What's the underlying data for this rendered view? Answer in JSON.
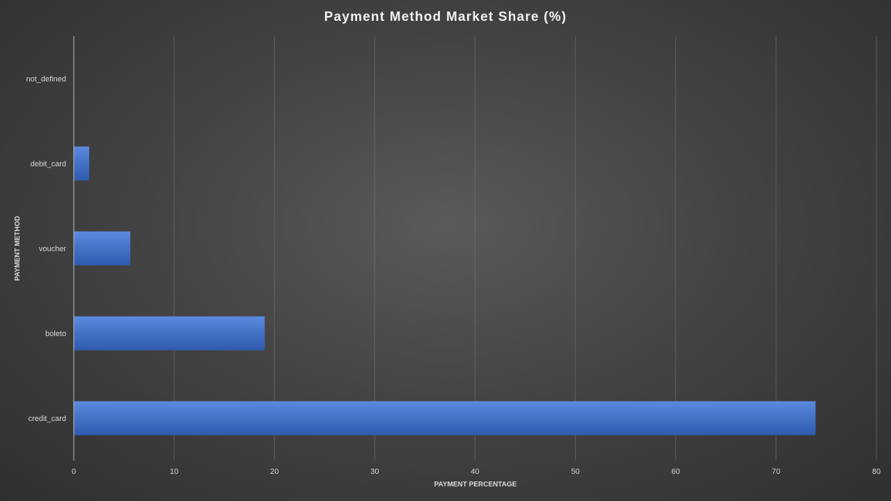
{
  "chart_data": {
    "type": "bar",
    "orientation": "horizontal",
    "title": "Payment Method Market Share (%)",
    "xlabel": "PAYMENT PERCENTAGE",
    "ylabel": "PAYMENT METHOD",
    "categories": [
      "not_defined",
      "debit_card",
      "voucher",
      "boleto",
      "credit_card"
    ],
    "values": [
      0.0,
      1.5,
      5.6,
      19.0,
      73.9
    ],
    "xlim": [
      0,
      80
    ],
    "x_ticks": [
      0,
      10,
      20,
      30,
      40,
      50,
      60,
      70,
      80
    ],
    "grid": true,
    "legend": "none",
    "colors": {
      "bar": "#4472c4",
      "bar_light": "#5b8ae0",
      "bar_dark": "#2f5bb0"
    }
  }
}
